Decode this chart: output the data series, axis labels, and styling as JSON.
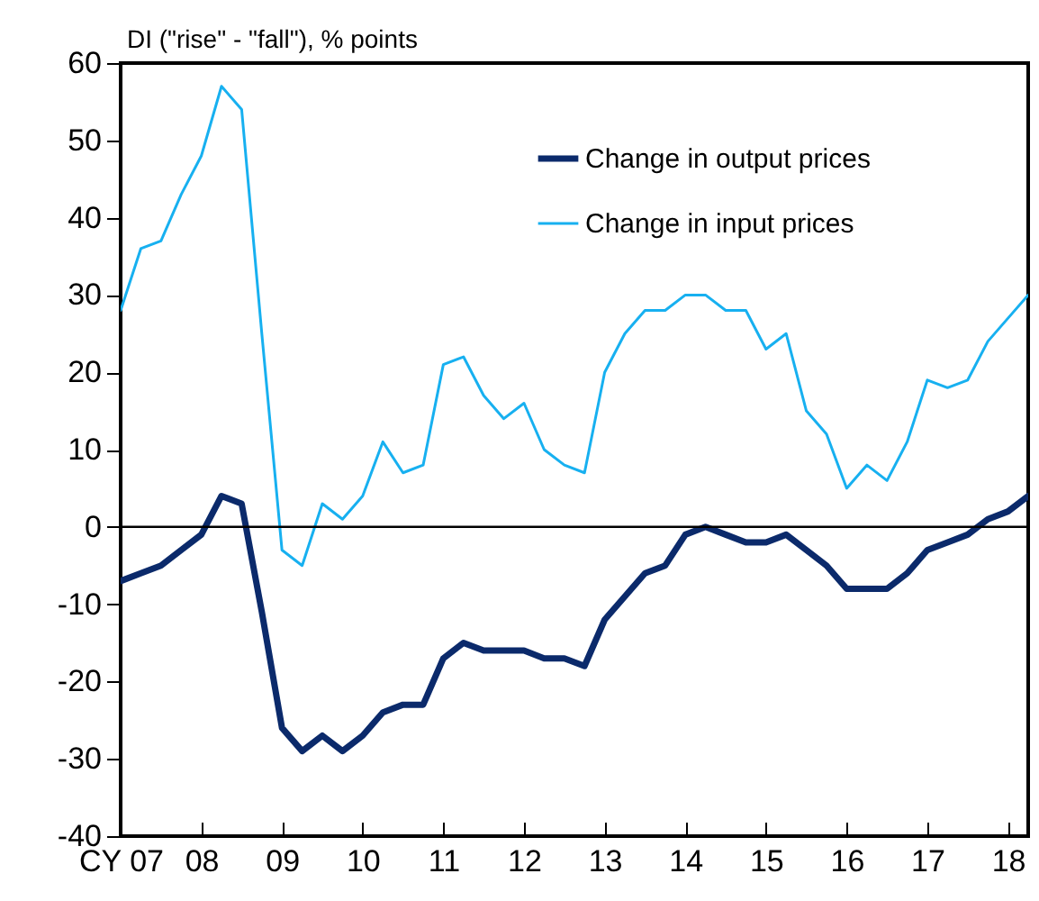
{
  "chart_data": {
    "type": "line",
    "ylabel": "DI (\"rise\" - \"fall\"), % points",
    "x": [
      2007,
      2007.25,
      2007.5,
      2007.75,
      2008,
      2008.25,
      2008.5,
      2008.75,
      2009,
      2009.25,
      2009.5,
      2009.75,
      2010,
      2010.25,
      2010.5,
      2010.75,
      2011,
      2011.25,
      2011.5,
      2011.75,
      2012,
      2012.25,
      2012.5,
      2012.75,
      2013,
      2013.25,
      2013.5,
      2013.75,
      2014,
      2014.25,
      2014.5,
      2014.75,
      2015,
      2015.25,
      2015.5,
      2015.75,
      2016,
      2016.25,
      2016.5,
      2016.75,
      2017,
      2017.25,
      2017.5,
      2017.75,
      2018,
      2018.25
    ],
    "series": [
      {
        "name": "Change in output prices",
        "color": "#0b2a6b",
        "values": [
          -7,
          -6,
          -5,
          -3,
          -1,
          4,
          3,
          -11,
          -26,
          -29,
          -27,
          -29,
          -27,
          -24,
          -23,
          -23,
          -17,
          -15,
          -16,
          -16,
          -16,
          -17,
          -17,
          -18,
          -12,
          -9,
          -6,
          -5,
          -1,
          0,
          -1,
          -2,
          -2,
          -1,
          -3,
          -5,
          -8,
          -8,
          -8,
          -6,
          -3,
          -2,
          -1,
          1,
          2,
          4
        ]
      },
      {
        "name": "Change in input prices",
        "color": "#17b0f0",
        "values": [
          28,
          36,
          37,
          43,
          48,
          57,
          54,
          25,
          -3,
          -5,
          3,
          1,
          4,
          11,
          7,
          8,
          21,
          22,
          17,
          14,
          16,
          10,
          8,
          7,
          20,
          25,
          28,
          28,
          30,
          30,
          28,
          28,
          23,
          25,
          15,
          12,
          5,
          8,
          6,
          11,
          19,
          18,
          19,
          24,
          27,
          30
        ]
      }
    ],
    "xlim": [
      2007,
      2018.25
    ],
    "xticks": [
      {
        "value": 2007,
        "label": "CY 07"
      },
      {
        "value": 2008,
        "label": "08"
      },
      {
        "value": 2009,
        "label": "09"
      },
      {
        "value": 2010,
        "label": "10"
      },
      {
        "value": 2011,
        "label": "11"
      },
      {
        "value": 2012,
        "label": "12"
      },
      {
        "value": 2013,
        "label": "13"
      },
      {
        "value": 2014,
        "label": "14"
      },
      {
        "value": 2015,
        "label": "15"
      },
      {
        "value": 2016,
        "label": "16"
      },
      {
        "value": 2017,
        "label": "17"
      },
      {
        "value": 2018,
        "label": "18"
      }
    ],
    "ylim": [
      -40,
      60
    ],
    "yticks": [
      -40,
      -30,
      -20,
      -10,
      0,
      10,
      20,
      30,
      40,
      50,
      60
    ],
    "ref_lines": [
      {
        "axis": "y",
        "value": 0,
        "color": "#000000"
      }
    ],
    "legend": "top right",
    "grid": false,
    "marker": "none",
    "line_style": "solid"
  }
}
